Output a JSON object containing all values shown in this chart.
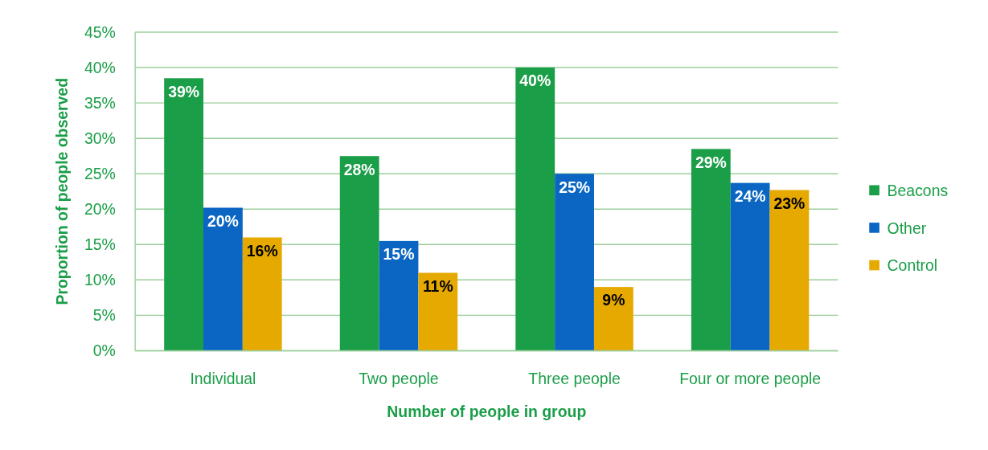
{
  "chart_data": {
    "type": "bar",
    "xlabel": "Number of people in group",
    "ylabel": "Proportion of people observed",
    "categories": [
      "Individual",
      "Two people",
      "Three people",
      "Four or more people"
    ],
    "series": [
      {
        "name": "Beacons",
        "color": "#1a9e48",
        "values": [
          38.5,
          27.5,
          40,
          28.5
        ],
        "value_labels": [
          "39%",
          "28%",
          "40%",
          "29%"
        ]
      },
      {
        "name": "Other",
        "color": "#0a66c2",
        "values": [
          20.2,
          15.5,
          25,
          23.7
        ],
        "value_labels": [
          "20%",
          "15%",
          "25%",
          "24%"
        ]
      },
      {
        "name": "Control",
        "color": "#e6a900",
        "values": [
          16,
          11,
          9,
          22.7
        ],
        "value_labels": [
          "16%",
          "11%",
          "9%",
          "23%"
        ]
      }
    ],
    "ylim": [
      0,
      45
    ],
    "yticks": [
      {
        "value": 0,
        "label": "0%"
      },
      {
        "value": 5,
        "label": "5%"
      },
      {
        "value": 10,
        "label": "10%"
      },
      {
        "value": 15,
        "label": "15%"
      },
      {
        "value": 20,
        "label": "20%"
      },
      {
        "value": 25,
        "label": "25%"
      },
      {
        "value": 30,
        "label": "30%"
      },
      {
        "value": 35,
        "label": "35%"
      },
      {
        "value": 40,
        "label": "40%"
      },
      {
        "value": 45,
        "label": "45%"
      }
    ],
    "grid": "y",
    "legend": "right"
  }
}
